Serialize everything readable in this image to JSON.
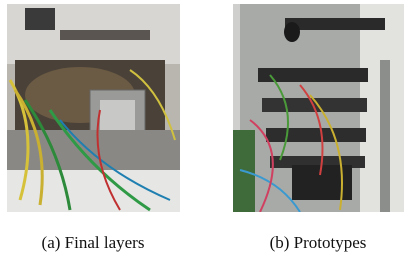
{
  "figure": {
    "panels": [
      {
        "caption": "(a) Final layers"
      },
      {
        "caption": "(b) Prototypes"
      }
    ]
  }
}
